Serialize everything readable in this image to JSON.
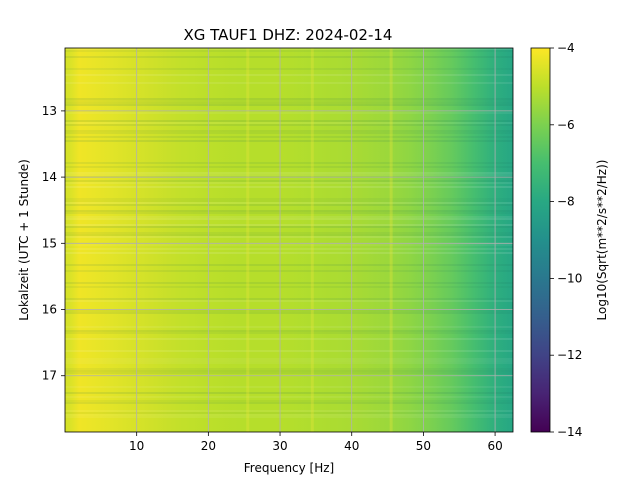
{
  "chart_data": {
    "type": "heatmap",
    "title": "XG TAUF1  DHZ: 2024-02-14",
    "xlabel": "Frequency [Hz]",
    "ylabel": "Lokalzeit (UTC + 1 Stunde)",
    "xlim": [
      0,
      62.5
    ],
    "ylim": [
      17.85,
      12.05
    ],
    "y_inverted": true,
    "x_ticks": [
      10,
      20,
      30,
      40,
      50,
      60
    ],
    "y_ticks": [
      13,
      14,
      15,
      16,
      17
    ],
    "grid": true,
    "colormap": "viridis",
    "colorbar": {
      "label": "Log10(Sqrt(m**2/s**2/Hz))",
      "range": [
        -14,
        -4
      ],
      "ticks": [
        -4,
        -6,
        -8,
        -10,
        -12,
        -14
      ],
      "tick_labels": [
        "−4",
        "−6",
        "−8",
        "−10",
        "−12",
        "−14"
      ]
    },
    "frequency_profile": {
      "frequency_hz": [
        0.5,
        2,
        4,
        8,
        12,
        16,
        20,
        25,
        30,
        35,
        40,
        45,
        48,
        51,
        54,
        57,
        60,
        62.5
      ],
      "log10_amplitude": [
        -4.6,
        -4.2,
        -4.3,
        -4.5,
        -4.7,
        -4.9,
        -5.0,
        -5.1,
        -5.1,
        -5.2,
        -5.3,
        -5.5,
        -5.7,
        -6.0,
        -6.4,
        -7.0,
        -7.7,
        -8.1
      ]
    },
    "notable_lines_hz": [
      25.5,
      34.5,
      45.5
    ]
  }
}
